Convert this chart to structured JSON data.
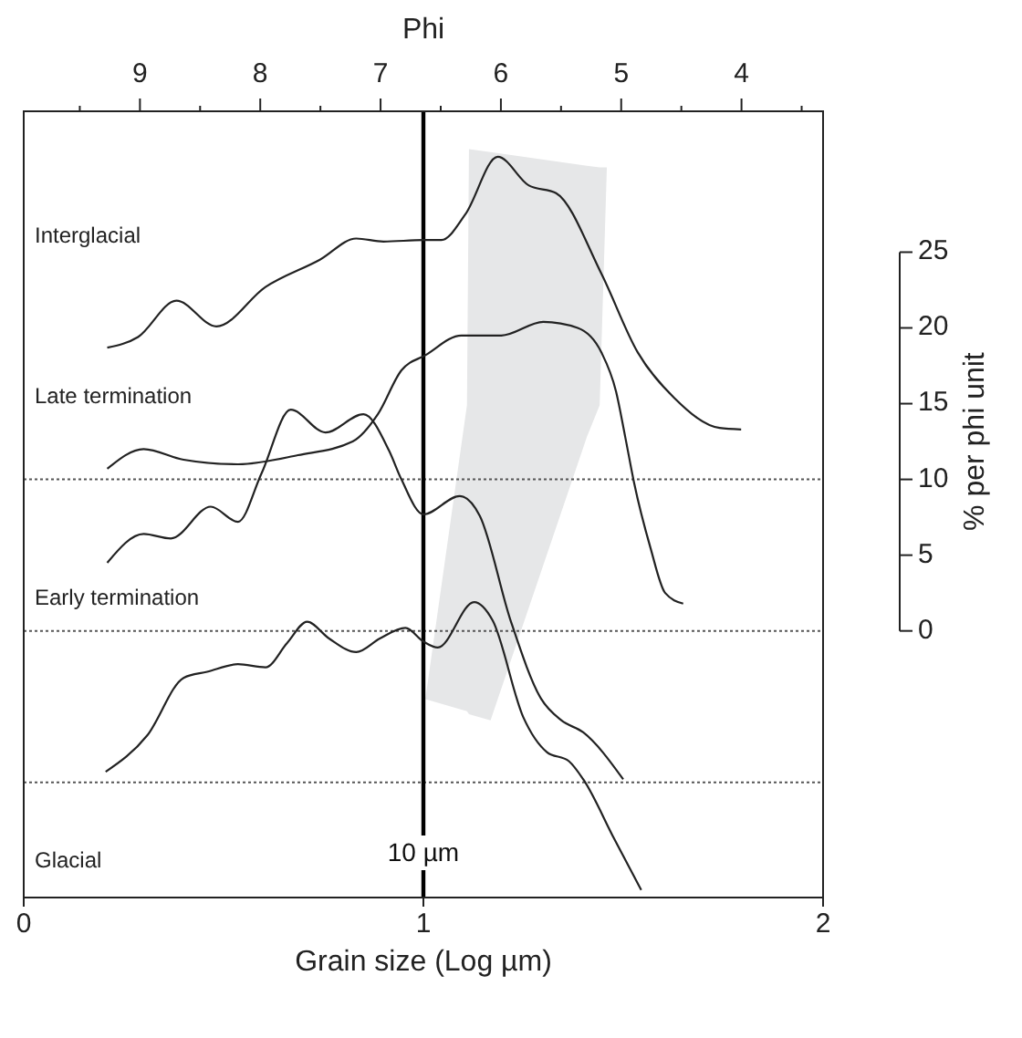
{
  "chart_data": {
    "type": "line",
    "xlabel": "Grain size (Log µm)",
    "x2label": "Phi",
    "ylabel": "% per phi unit",
    "xlim": [
      0,
      2
    ],
    "xticks": [
      0,
      1,
      2
    ],
    "x2lim": [
      9.966,
      3.322
    ],
    "x2ticks": [
      {
        "value": 9.5,
        "label": null
      },
      9,
      {
        "value": 8.5,
        "label": null
      },
      8,
      {
        "value": 7.5,
        "label": null
      },
      7,
      {
        "value": 6.5,
        "label": null
      },
      6,
      {
        "value": 5.5,
        "label": null
      },
      5,
      {
        "value": 4.5,
        "label": null
      },
      4,
      {
        "value": 3.5,
        "label": null
      }
    ],
    "ylim": [
      -17.6,
      34.3
    ],
    "yticks": [
      0,
      5,
      10,
      15,
      20,
      25
    ],
    "tick_labels": "xy",
    "grid": false,
    "marker": "none",
    "line_style": "solid",
    "series": [
      {
        "color": "#222222",
        "x": [
          0.209,
          0.286,
          0.382,
          0.482,
          0.605,
          0.741,
          0.832,
          0.9,
          1.0,
          1.045,
          1.105,
          1.186,
          1.264,
          1.332,
          1.445,
          1.536,
          1.627,
          1.741,
          1.795
        ],
        "values": [
          18.7,
          19.4,
          21.8,
          20.1,
          22.7,
          24.5,
          25.9,
          25.7,
          25.8,
          25.8,
          27.5,
          31.3,
          29.4,
          28.9,
          23.6,
          18.4,
          15.4,
          13.4,
          13.3
        ]
      },
      {
        "color": "#222222",
        "x": [
          0.209,
          0.3,
          0.4,
          0.536,
          0.686,
          0.823,
          0.886,
          0.945,
          1.005,
          1.095,
          1.195,
          1.3,
          1.386,
          1.445,
          1.482,
          1.505,
          1.527,
          1.568,
          1.605,
          1.65
        ],
        "values": [
          10.7,
          12.0,
          11.3,
          11.0,
          11.6,
          12.5,
          14.3,
          17.2,
          18.2,
          19.5,
          19.5,
          20.4,
          20.0,
          18.4,
          15.8,
          12.8,
          9.8,
          5.5,
          2.5,
          1.8
        ]
      },
      {
        "color": "#222222",
        "x": [
          0.209,
          0.3,
          0.368,
          0.468,
          0.536,
          0.595,
          0.668,
          0.755,
          0.85,
          0.914,
          0.945,
          1.0,
          1.091,
          1.141,
          1.218,
          1.295,
          1.345,
          1.4,
          1.5
        ],
        "values": [
          4.5,
          6.4,
          6.1,
          8.2,
          7.2,
          10.4,
          14.6,
          13.1,
          14.3,
          11.9,
          10.0,
          7.7,
          8.9,
          7.6,
          0.7,
          -4.5,
          -5.9,
          -6.7,
          -9.8
        ]
      },
      {
        "color": "#222222",
        "x": [
          0.205,
          0.309,
          0.4,
          0.459,
          0.536,
          0.605,
          0.659,
          0.709,
          0.764,
          0.832,
          0.891,
          0.955,
          1.0,
          1.036,
          1.127,
          1.173,
          1.25,
          1.309,
          1.364,
          1.4,
          1.477,
          1.545
        ],
        "values": [
          -9.3,
          -6.9,
          -3.1,
          -2.7,
          -2.2,
          -2.4,
          -0.8,
          0.6,
          -0.5,
          -1.4,
          -0.5,
          0.2,
          -0.7,
          -1.1,
          1.9,
          0.7,
          -5.7,
          -8.0,
          -8.6,
          -9.8,
          -13.7,
          -17.1
        ]
      },
      {
        "color": "#e6e7e8",
        "x": [
          1.005,
          1.109,
          1.114,
          1.168,
          1.409,
          1.441,
          1.459
        ],
        "values": [
          null,
          null,
          null,
          null,
          null,
          null,
          null
        ],
        "upper": [
          -4.5,
          14.9,
          31.8,
          31.6,
          30.7,
          30.6,
          30.6
        ],
        "lower": [
          -4.5,
          -5.3,
          -5.5,
          -5.9,
          12.8,
          14.9,
          30.6
        ]
      }
    ],
    "ref_lines": [
      {
        "axis": "y",
        "value": 10,
        "color": "#555555",
        "line_style": "dotted"
      },
      {
        "axis": "y",
        "value": 0,
        "color": "#555555",
        "line_style": "dotted"
      },
      {
        "axis": "y",
        "value": -10,
        "color": "#555555",
        "line_style": "dotted"
      },
      {
        "axis": "x",
        "value": 1,
        "label": "10 µm",
        "color": "#000000",
        "line_style": "solid"
      }
    ],
    "annotations": [
      "Interglacial",
      "Late termination",
      "Early termination",
      "Glacial"
    ]
  }
}
